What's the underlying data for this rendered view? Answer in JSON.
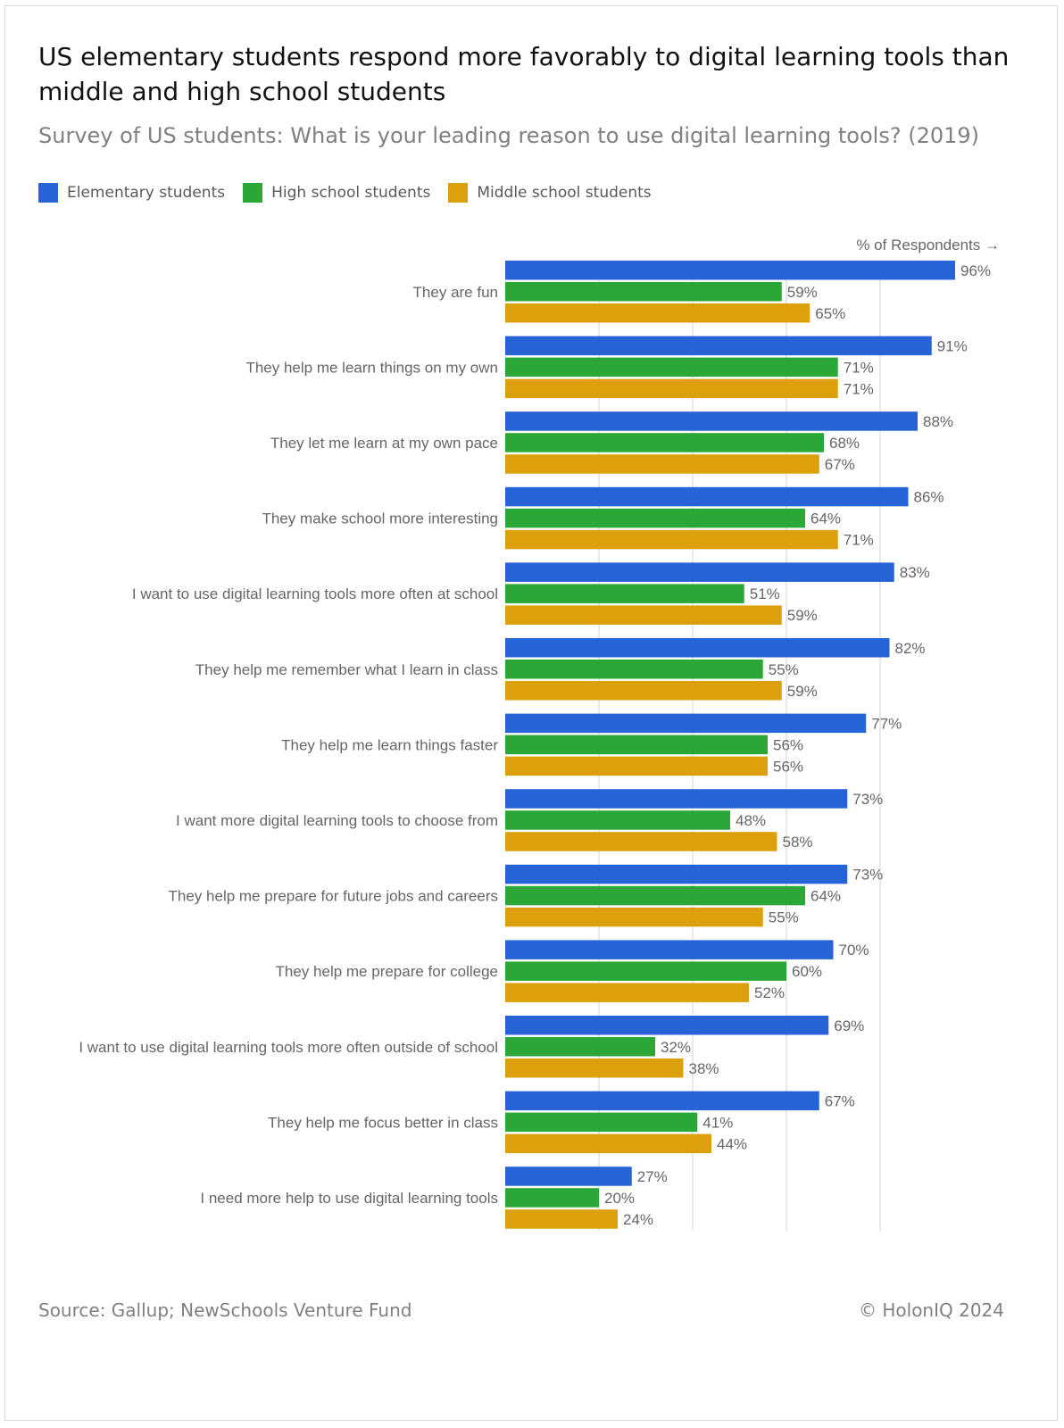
{
  "chart_data": {
    "type": "bar",
    "orientation": "horizontal",
    "title": "US elementary students respond more favorably to digital learning tools than middle and high school students",
    "subtitle": "Survey of US students: What is your leading reason to use digital learning tools? (2019)",
    "xlabel": "% of Respondents →",
    "ylabel": "",
    "xlim": [
      0,
      100
    ],
    "grid": true,
    "legend_position": "top-left",
    "categories": [
      "They are fun",
      "They help me learn things on my own",
      "They let me learn at my own pace",
      "They make school more interesting",
      "I want to use digital learning tools more often at school",
      "They help me remember what I learn in class",
      "They help me learn things faster",
      "I want more digital learning tools to choose from",
      "They help me prepare for future jobs and careers",
      "They help me prepare for college",
      "I want to use digital learning tools more often outside of school",
      "They help me focus better in class",
      "I need more help to use digital learning tools"
    ],
    "series": [
      {
        "name": "Elementary students",
        "color": "#2563d6",
        "values": [
          96,
          91,
          88,
          86,
          83,
          82,
          77,
          73,
          73,
          70,
          69,
          67,
          27
        ]
      },
      {
        "name": "High school students",
        "color": "#2ba737",
        "values": [
          59,
          71,
          68,
          64,
          51,
          55,
          56,
          48,
          64,
          60,
          32,
          41,
          20
        ]
      },
      {
        "name": "Middle school students",
        "color": "#dba00b",
        "values": [
          65,
          71,
          67,
          71,
          59,
          59,
          56,
          58,
          55,
          52,
          38,
          44,
          24
        ]
      }
    ],
    "value_suffix": "%"
  },
  "footer": {
    "source": "Source: Gallup; NewSchools Venture Fund",
    "copyright": "© HolonIQ 2024"
  }
}
